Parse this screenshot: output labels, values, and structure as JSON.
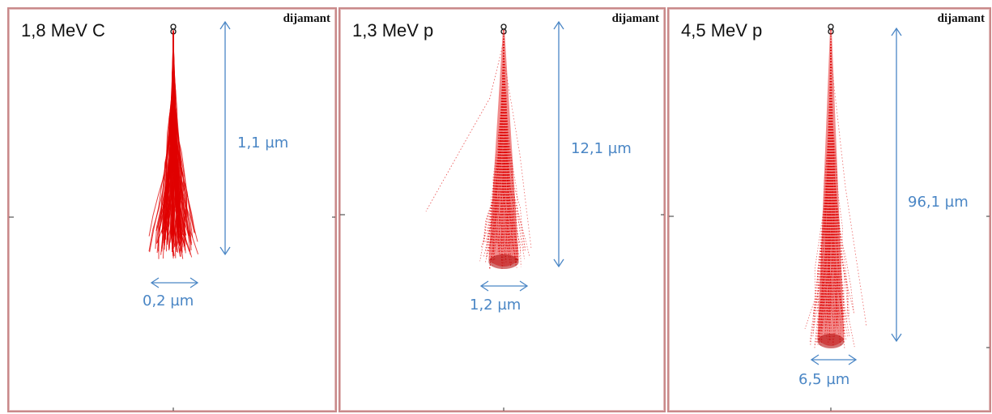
{
  "accent": {
    "trajectory_color": "#e00000",
    "arrow_color": "#4a86c5",
    "frame_color": "#c9898a"
  },
  "panels": [
    {
      "beam_label": "1,8 MeV C",
      "material": "dijamant",
      "depth_label": "1,1 µm",
      "width_label": "0,2 µm"
    },
    {
      "beam_label": "1,3 MeV p",
      "material": "dijamant",
      "depth_label": "12,1 µm",
      "width_label": "1,2 µm"
    },
    {
      "beam_label": "4,5 MeV p",
      "material": "dijamant",
      "depth_label": "96,1 µm",
      "width_label": "6,5 µm"
    }
  ]
}
